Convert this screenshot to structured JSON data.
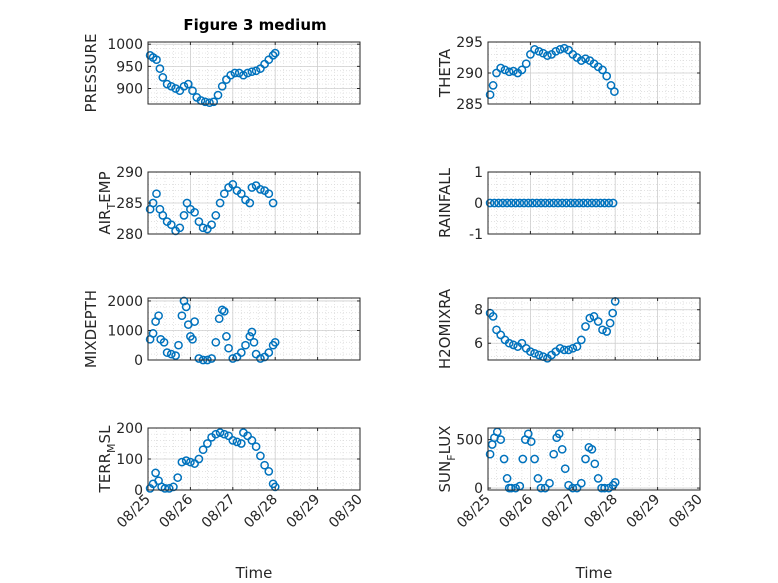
{
  "figure": {
    "title": "Figure 3 medium"
  },
  "chart_data": [
    {
      "type": "scatter",
      "ylabel": "PRESSURE",
      "ylabel_sub": "",
      "yticks": [
        900,
        950,
        1000
      ],
      "ylim": [
        865,
        1005
      ],
      "xlim": [
        0,
        5
      ],
      "xticks": [
        0,
        1,
        2,
        3,
        4,
        5
      ],
      "xticklabels": [
        "08/25",
        "08/26",
        "08/27",
        "08/28",
        "08/29",
        "08/30"
      ],
      "xlabel": "",
      "grid": true,
      "points": [
        [
          0.05,
          975
        ],
        [
          0.12,
          970
        ],
        [
          0.2,
          965
        ],
        [
          0.28,
          945
        ],
        [
          0.35,
          925
        ],
        [
          0.45,
          910
        ],
        [
          0.55,
          905
        ],
        [
          0.65,
          900
        ],
        [
          0.75,
          895
        ],
        [
          0.85,
          905
        ],
        [
          0.95,
          910
        ],
        [
          1.05,
          895
        ],
        [
          1.15,
          880
        ],
        [
          1.25,
          873
        ],
        [
          1.35,
          870
        ],
        [
          1.45,
          868
        ],
        [
          1.55,
          870
        ],
        [
          1.65,
          885
        ],
        [
          1.75,
          905
        ],
        [
          1.85,
          920
        ],
        [
          1.95,
          930
        ],
        [
          2.05,
          935
        ],
        [
          2.15,
          935
        ],
        [
          2.25,
          930
        ],
        [
          2.35,
          935
        ],
        [
          2.45,
          938
        ],
        [
          2.55,
          940
        ],
        [
          2.65,
          945
        ],
        [
          2.75,
          955
        ],
        [
          2.85,
          965
        ],
        [
          2.95,
          975
        ],
        [
          3.0,
          980
        ]
      ],
      "marker_color": "#0072BD"
    },
    {
      "type": "scatter",
      "ylabel": "THETA",
      "ylabel_sub": "",
      "yticks": [
        285,
        290,
        295
      ],
      "ylim": [
        285,
        295
      ],
      "xlim": [
        0,
        5
      ],
      "xticks": [
        0,
        1,
        2,
        3,
        4,
        5
      ],
      "xticklabels": [
        "08/25",
        "08/26",
        "08/27",
        "08/28",
        "08/29",
        "08/30"
      ],
      "xlabel": "",
      "grid": true,
      "points": [
        [
          0.05,
          286.5
        ],
        [
          0.12,
          288
        ],
        [
          0.2,
          290
        ],
        [
          0.3,
          290.8
        ],
        [
          0.4,
          290.5
        ],
        [
          0.5,
          290.2
        ],
        [
          0.6,
          290.3
        ],
        [
          0.7,
          290
        ],
        [
          0.8,
          290.5
        ],
        [
          0.9,
          291.5
        ],
        [
          1.0,
          293
        ],
        [
          1.1,
          293.8
        ],
        [
          1.2,
          293.5
        ],
        [
          1.3,
          293.2
        ],
        [
          1.4,
          292.8
        ],
        [
          1.5,
          293
        ],
        [
          1.6,
          293.5
        ],
        [
          1.7,
          293.8
        ],
        [
          1.8,
          294
        ],
        [
          1.9,
          293.7
        ],
        [
          2.0,
          293
        ],
        [
          2.1,
          292.5
        ],
        [
          2.2,
          292
        ],
        [
          2.3,
          292.3
        ],
        [
          2.4,
          292
        ],
        [
          2.5,
          291.5
        ],
        [
          2.6,
          291
        ],
        [
          2.7,
          290.5
        ],
        [
          2.8,
          289.5
        ],
        [
          2.9,
          288
        ],
        [
          2.98,
          287
        ]
      ],
      "marker_color": "#0072BD"
    },
    {
      "type": "scatter",
      "ylabel": "AIR",
      "ylabel_sub": "T",
      "ylabel_rest": "EMP",
      "yticks": [
        280,
        285,
        290
      ],
      "ylim": [
        280,
        290
      ],
      "xlim": [
        0,
        5
      ],
      "xticks": [
        0,
        1,
        2,
        3,
        4,
        5
      ],
      "xticklabels": [
        "08/25",
        "08/26",
        "08/27",
        "08/28",
        "08/29",
        "08/30"
      ],
      "xlabel": "",
      "grid": true,
      "points": [
        [
          0.05,
          284
        ],
        [
          0.12,
          285
        ],
        [
          0.2,
          286.5
        ],
        [
          0.28,
          284
        ],
        [
          0.35,
          283
        ],
        [
          0.45,
          282
        ],
        [
          0.55,
          281.5
        ],
        [
          0.65,
          280.5
        ],
        [
          0.75,
          281
        ],
        [
          0.85,
          283
        ],
        [
          0.92,
          285
        ],
        [
          1.0,
          284
        ],
        [
          1.1,
          283.5
        ],
        [
          1.2,
          282
        ],
        [
          1.3,
          281
        ],
        [
          1.4,
          280.8
        ],
        [
          1.5,
          281.5
        ],
        [
          1.6,
          283
        ],
        [
          1.7,
          285
        ],
        [
          1.8,
          286.5
        ],
        [
          1.9,
          287.5
        ],
        [
          2.0,
          288
        ],
        [
          2.1,
          287
        ],
        [
          2.2,
          286.5
        ],
        [
          2.3,
          285.5
        ],
        [
          2.4,
          285
        ],
        [
          2.45,
          287.5
        ],
        [
          2.55,
          287.8
        ],
        [
          2.65,
          287.2
        ],
        [
          2.75,
          287
        ],
        [
          2.85,
          286.5
        ],
        [
          2.95,
          285
        ]
      ],
      "marker_color": "#0072BD"
    },
    {
      "type": "scatter",
      "ylabel": "RAINFALL",
      "ylabel_sub": "",
      "yticks": [
        -1,
        0,
        1
      ],
      "ylim": [
        -1,
        1
      ],
      "xlim": [
        0,
        5
      ],
      "xticks": [
        0,
        1,
        2,
        3,
        4,
        5
      ],
      "xticklabels": [
        "08/25",
        "08/26",
        "08/27",
        "08/28",
        "08/29",
        "08/30"
      ],
      "xlabel": "",
      "grid": true,
      "points": [
        [
          0.05,
          0
        ],
        [
          0.15,
          0
        ],
        [
          0.25,
          0
        ],
        [
          0.35,
          0
        ],
        [
          0.45,
          0
        ],
        [
          0.55,
          0
        ],
        [
          0.65,
          0
        ],
        [
          0.75,
          0
        ],
        [
          0.85,
          0
        ],
        [
          0.95,
          0
        ],
        [
          1.05,
          0
        ],
        [
          1.15,
          0
        ],
        [
          1.25,
          0
        ],
        [
          1.35,
          0
        ],
        [
          1.45,
          0
        ],
        [
          1.55,
          0
        ],
        [
          1.65,
          0
        ],
        [
          1.75,
          0
        ],
        [
          1.85,
          0
        ],
        [
          1.95,
          0
        ],
        [
          2.05,
          0
        ],
        [
          2.15,
          0
        ],
        [
          2.25,
          0
        ],
        [
          2.35,
          0
        ],
        [
          2.45,
          0
        ],
        [
          2.55,
          0
        ],
        [
          2.65,
          0
        ],
        [
          2.75,
          0
        ],
        [
          2.85,
          0
        ],
        [
          2.95,
          0
        ]
      ],
      "marker_color": "#0072BD"
    },
    {
      "type": "scatter",
      "ylabel": "MIXDEPTH",
      "ylabel_sub": "",
      "yticks": [
        0,
        1000,
        2000
      ],
      "ylim": [
        0,
        2100
      ],
      "xlim": [
        0,
        5
      ],
      "xticks": [
        0,
        1,
        2,
        3,
        4,
        5
      ],
      "xticklabels": [
        "08/25",
        "08/26",
        "08/27",
        "08/28",
        "08/29",
        "08/30"
      ],
      "xlabel": "",
      "grid": true,
      "points": [
        [
          0.05,
          700
        ],
        [
          0.12,
          900
        ],
        [
          0.18,
          1300
        ],
        [
          0.25,
          1500
        ],
        [
          0.3,
          700
        ],
        [
          0.38,
          600
        ],
        [
          0.45,
          250
        ],
        [
          0.55,
          200
        ],
        [
          0.65,
          150
        ],
        [
          0.72,
          500
        ],
        [
          0.8,
          1500
        ],
        [
          0.85,
          2000
        ],
        [
          0.9,
          1800
        ],
        [
          0.95,
          1200
        ],
        [
          1.0,
          800
        ],
        [
          1.05,
          700
        ],
        [
          1.1,
          1300
        ],
        [
          1.2,
          50
        ],
        [
          1.3,
          0
        ],
        [
          1.4,
          0
        ],
        [
          1.5,
          50
        ],
        [
          1.6,
          600
        ],
        [
          1.68,
          1400
        ],
        [
          1.75,
          1700
        ],
        [
          1.8,
          1650
        ],
        [
          1.85,
          800
        ],
        [
          1.9,
          400
        ],
        [
          2.0,
          50
        ],
        [
          2.1,
          100
        ],
        [
          2.2,
          250
        ],
        [
          2.3,
          500
        ],
        [
          2.4,
          800
        ],
        [
          2.45,
          950
        ],
        [
          2.5,
          600
        ],
        [
          2.55,
          200
        ],
        [
          2.65,
          50
        ],
        [
          2.75,
          100
        ],
        [
          2.85,
          250
        ],
        [
          2.95,
          500
        ],
        [
          3.0,
          600
        ]
      ],
      "marker_color": "#0072BD"
    },
    {
      "type": "scatter",
      "ylabel": "H2OMIXRA",
      "ylabel_sub": "",
      "yticks": [
        6,
        8
      ],
      "ylim": [
        5,
        8.7
      ],
      "xlim": [
        0,
        5
      ],
      "xticks": [
        0,
        1,
        2,
        3,
        4,
        5
      ],
      "xticklabels": [
        "08/25",
        "08/26",
        "08/27",
        "08/28",
        "08/29",
        "08/30"
      ],
      "xlabel": "",
      "grid": true,
      "points": [
        [
          0.05,
          7.8
        ],
        [
          0.12,
          7.6
        ],
        [
          0.2,
          6.8
        ],
        [
          0.3,
          6.5
        ],
        [
          0.4,
          6.2
        ],
        [
          0.5,
          6
        ],
        [
          0.6,
          5.9
        ],
        [
          0.7,
          5.8
        ],
        [
          0.8,
          6
        ],
        [
          0.9,
          5.7
        ],
        [
          1.0,
          5.5
        ],
        [
          1.1,
          5.4
        ],
        [
          1.2,
          5.3
        ],
        [
          1.3,
          5.2
        ],
        [
          1.4,
          5.1
        ],
        [
          1.5,
          5.3
        ],
        [
          1.6,
          5.5
        ],
        [
          1.7,
          5.7
        ],
        [
          1.8,
          5.6
        ],
        [
          1.9,
          5.6
        ],
        [
          2.0,
          5.7
        ],
        [
          2.1,
          5.8
        ],
        [
          2.2,
          6.2
        ],
        [
          2.3,
          7
        ],
        [
          2.4,
          7.5
        ],
        [
          2.5,
          7.6
        ],
        [
          2.6,
          7.3
        ],
        [
          2.7,
          6.8
        ],
        [
          2.8,
          6.7
        ],
        [
          2.88,
          7.2
        ],
        [
          2.94,
          7.8
        ],
        [
          3.0,
          8.5
        ]
      ],
      "marker_color": "#0072BD"
    },
    {
      "type": "scatter",
      "ylabel": "TERR",
      "ylabel_sub": "M",
      "ylabel_rest": "SL",
      "yticks": [
        0,
        100,
        200
      ],
      "ylim": [
        0,
        200
      ],
      "xlim": [
        0,
        5
      ],
      "xticks": [
        0,
        1,
        2,
        3,
        4,
        5
      ],
      "xticklabels": [
        "08/25",
        "08/26",
        "08/27",
        "08/28",
        "08/29",
        "08/30"
      ],
      "xlabel": "Time",
      "grid": true,
      "points": [
        [
          0.05,
          5
        ],
        [
          0.12,
          20
        ],
        [
          0.18,
          55
        ],
        [
          0.25,
          30
        ],
        [
          0.32,
          10
        ],
        [
          0.4,
          5
        ],
        [
          0.5,
          5
        ],
        [
          0.6,
          10
        ],
        [
          0.7,
          40
        ],
        [
          0.8,
          90
        ],
        [
          0.9,
          95
        ],
        [
          1.0,
          90
        ],
        [
          1.1,
          85
        ],
        [
          1.2,
          100
        ],
        [
          1.3,
          130
        ],
        [
          1.4,
          150
        ],
        [
          1.5,
          170
        ],
        [
          1.6,
          180
        ],
        [
          1.7,
          185
        ],
        [
          1.8,
          180
        ],
        [
          1.9,
          175
        ],
        [
          2.0,
          160
        ],
        [
          2.1,
          155
        ],
        [
          2.2,
          150
        ],
        [
          2.25,
          185
        ],
        [
          2.35,
          175
        ],
        [
          2.45,
          160
        ],
        [
          2.55,
          140
        ],
        [
          2.65,
          110
        ],
        [
          2.75,
          80
        ],
        [
          2.85,
          60
        ],
        [
          2.95,
          20
        ],
        [
          3.0,
          10
        ]
      ],
      "marker_color": "#0072BD"
    },
    {
      "type": "scatter",
      "ylabel": "SUN",
      "ylabel_sub": "F",
      "ylabel_rest": "LUX",
      "yticks": [
        0,
        500
      ],
      "ylim": [
        -20,
        620
      ],
      "xlim": [
        0,
        5
      ],
      "xticks": [
        0,
        1,
        2,
        3,
        4,
        5
      ],
      "xticklabels": [
        "08/25",
        "08/26",
        "08/27",
        "08/28",
        "08/29",
        "08/30"
      ],
      "xlabel": "Time",
      "grid": true,
      "points": [
        [
          0.05,
          350
        ],
        [
          0.1,
          450
        ],
        [
          0.15,
          520
        ],
        [
          0.22,
          580
        ],
        [
          0.3,
          500
        ],
        [
          0.38,
          300
        ],
        [
          0.45,
          100
        ],
        [
          0.5,
          0
        ],
        [
          0.55,
          0
        ],
        [
          0.65,
          0
        ],
        [
          0.75,
          20
        ],
        [
          0.82,
          300
        ],
        [
          0.88,
          500
        ],
        [
          0.95,
          560
        ],
        [
          1.02,
          480
        ],
        [
          1.1,
          300
        ],
        [
          1.18,
          100
        ],
        [
          1.25,
          0
        ],
        [
          1.35,
          0
        ],
        [
          1.45,
          50
        ],
        [
          1.55,
          350
        ],
        [
          1.62,
          520
        ],
        [
          1.68,
          560
        ],
        [
          1.75,
          400
        ],
        [
          1.82,
          200
        ],
        [
          1.9,
          30
        ],
        [
          2.0,
          0
        ],
        [
          2.1,
          0
        ],
        [
          2.2,
          50
        ],
        [
          2.3,
          300
        ],
        [
          2.38,
          420
        ],
        [
          2.45,
          400
        ],
        [
          2.52,
          250
        ],
        [
          2.6,
          100
        ],
        [
          2.68,
          0
        ],
        [
          2.75,
          0
        ],
        [
          2.85,
          0
        ],
        [
          2.95,
          30
        ],
        [
          3.0,
          60
        ]
      ],
      "marker_color": "#0072BD"
    }
  ]
}
